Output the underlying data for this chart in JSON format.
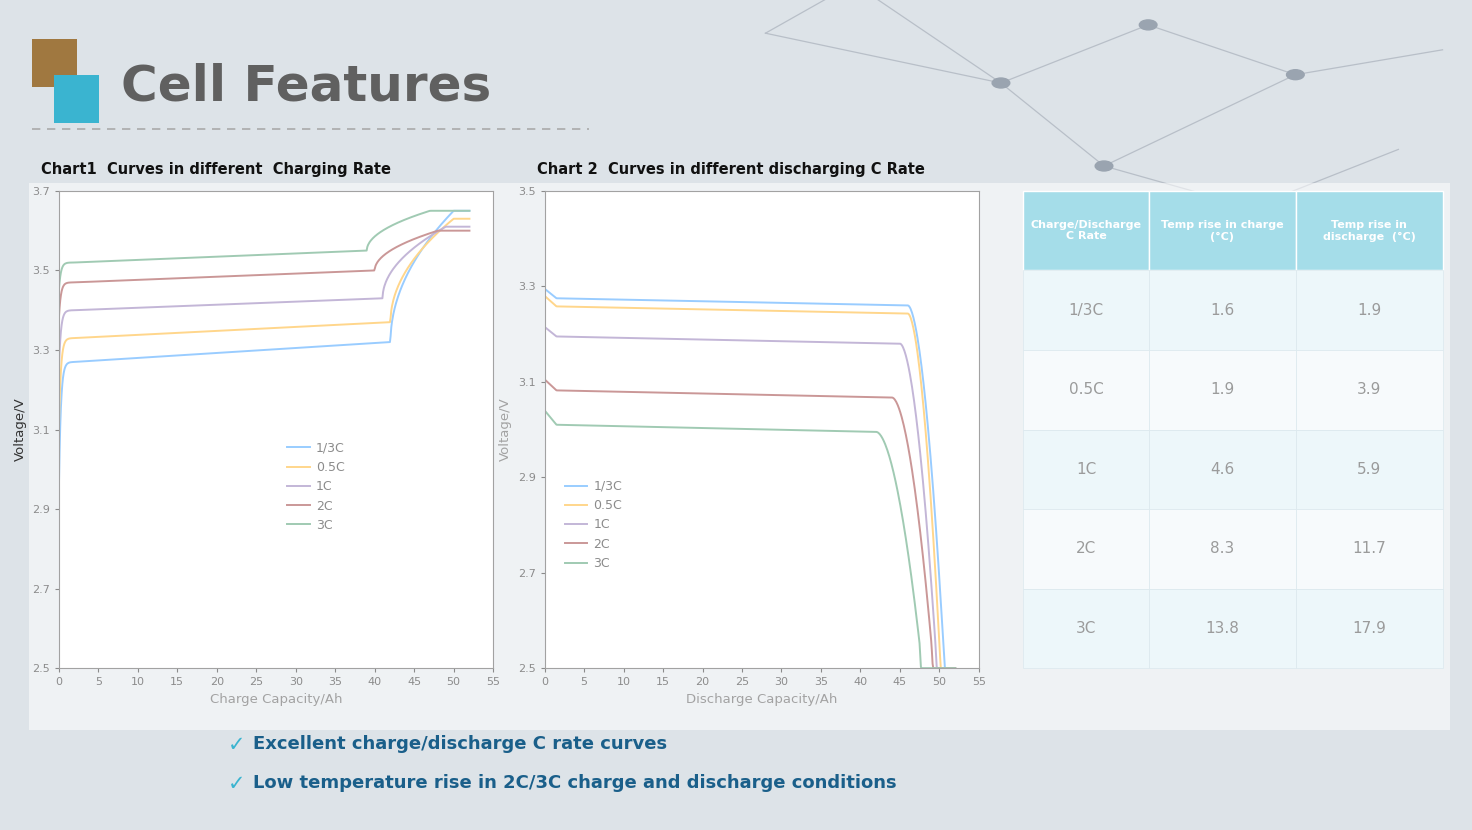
{
  "title": "Cell Features",
  "chart1_title": "Chart1  Curves in different  Charging Rate",
  "chart2_title": "Chart 2  Curves in different discharging C Rate",
  "charge_xlabel": "Charge Capacity/Ah",
  "discharge_xlabel": "Discharge Capacity/Ah",
  "ylabel": "Voltage/V",
  "charge_ylim": [
    2.5,
    3.7
  ],
  "discharge_ylim": [
    2.5,
    3.5
  ],
  "xlim": [
    0,
    55
  ],
  "xticks": [
    0,
    5,
    10,
    15,
    20,
    25,
    30,
    35,
    40,
    45,
    50,
    55
  ],
  "charge_yticks": [
    2.5,
    2.7,
    2.9,
    3.1,
    3.3,
    3.5,
    3.7
  ],
  "discharge_yticks": [
    2.5,
    2.7,
    2.9,
    3.1,
    3.3,
    3.5
  ],
  "colors": {
    "one_third_C": "#1e90ff",
    "half_C": "#ffa500",
    "one_C": "#7b5ea7",
    "two_C": "#8b1a1a",
    "three_C": "#2e8b57"
  },
  "legend_labels": [
    "1/3C",
    "0.5C",
    "1C",
    "2C",
    "3C"
  ],
  "bg_color": "#dde3ea",
  "bullet_text1": "Excellent charge/discharge C rate curves",
  "bullet_text2": "Low temperature rise in 2C/3C charge and discharge conditions",
  "table_headers": [
    "Charge/Discharge\nC Rate",
    "Temp rise in charge\n(°C)",
    "Temp rise in\ndischarge  (°C)"
  ],
  "table_rows": [
    [
      "1/3C",
      "1.6",
      "1.9"
    ],
    [
      "0.5C",
      "1.9",
      "3.9"
    ],
    [
      "1C",
      "4.6",
      "5.9"
    ],
    [
      "2C",
      "8.3",
      "11.7"
    ],
    [
      "3C",
      "13.8",
      "17.9"
    ]
  ],
  "header_bg": "#3ab4d0",
  "row_bg_even": "#d8eef5",
  "row_bg_odd": "#eef6fa"
}
